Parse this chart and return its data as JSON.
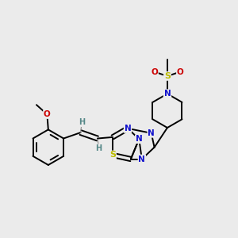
{
  "bg_color": "#ebebeb",
  "atom_colors": {
    "C": "#000000",
    "N": "#1111cc",
    "S": "#bbbb00",
    "O": "#cc0000",
    "H": "#558888"
  },
  "bond_color": "#000000",
  "bond_width": 1.4,
  "dpi": 100,
  "figsize": [
    3.0,
    3.0
  ],
  "xlim": [
    0,
    10
  ],
  "ylim": [
    0,
    10
  ]
}
